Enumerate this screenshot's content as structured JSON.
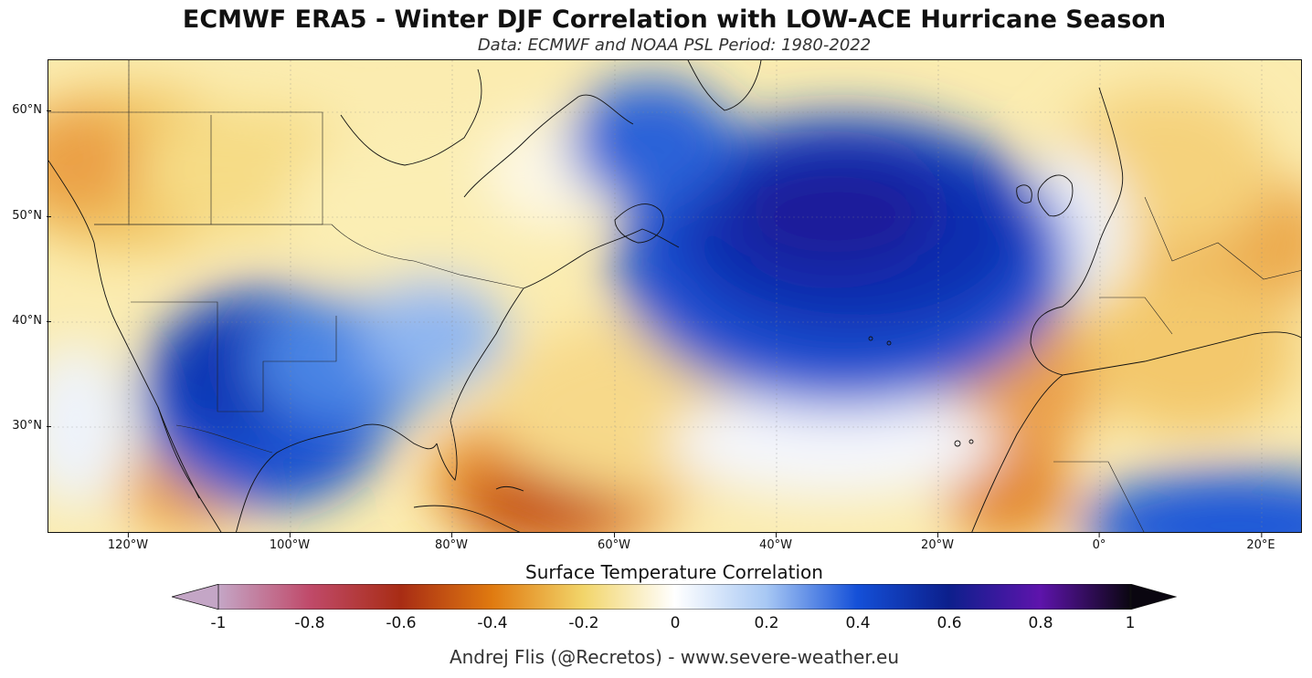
{
  "title": "ECMWF ERA5 - Winter DJF Correlation with LOW-ACE Hurricane Season",
  "subtitle": "Data: ECMWF and NOAA PSL  Period: 1980-2022",
  "map": {
    "lat_labels": [
      "60°N",
      "50°N",
      "40°N",
      "30°N"
    ],
    "lon_labels": [
      "120°W",
      "100°W",
      "80°W",
      "60°W",
      "40°W",
      "20°W",
      "0°",
      "20°E"
    ],
    "lon_range": [
      -130,
      25
    ],
    "lat_range": [
      20,
      65
    ]
  },
  "colorbar": {
    "label": "Surface Temperature Correlation",
    "ticks": [
      "-1",
      "-0.8",
      "-0.6",
      "-0.4",
      "-0.2",
      "0",
      "0.2",
      "0.4",
      "0.6",
      "0.8",
      "1"
    ],
    "colors": [
      "#c4a6c6",
      "#c04a6a",
      "#a82c14",
      "#e07a10",
      "#f2d56a",
      "#ffffff",
      "#a8c8f4",
      "#1450d8",
      "#0c1f8c",
      "#5e14ac",
      "#0a0610"
    ]
  },
  "credit": "Andrej Flis (@Recretos) - www.severe-weather.eu"
}
